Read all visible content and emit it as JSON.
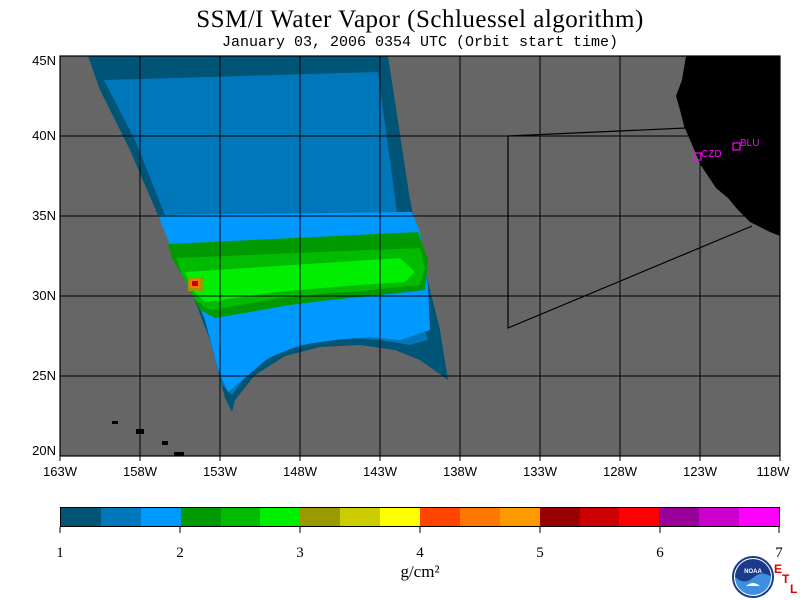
{
  "title": "SSM/I Water Vapor (Schluessel algorithm)",
  "subtitle": "January 03, 2006  0354 UTC  (Orbit start time)",
  "lat_labels": [
    "45N",
    "40N",
    "35N",
    "30N",
    "25N",
    "20N"
  ],
  "lon_labels": [
    "163W",
    "158W",
    "153W",
    "148W",
    "143W",
    "138W",
    "133W",
    "128W",
    "123W",
    "118W"
  ],
  "stations": [
    {
      "name": "CZD",
      "lat": 38.6,
      "lon": -123.2
    },
    {
      "name": "BLU",
      "lat": 39.3,
      "lon": -120.8
    }
  ],
  "colorbar": {
    "unit": "g/cm²",
    "tick_labels": [
      "1",
      "2",
      "3",
      "4",
      "5",
      "6",
      "7"
    ],
    "colors": [
      "#005577",
      "#0077bb",
      "#0099ff",
      "#009900",
      "#00bb00",
      "#00ee00",
      "#999900",
      "#cccc00",
      "#ffff00",
      "#ff4400",
      "#ff7700",
      "#ff9900",
      "#990000",
      "#cc0000",
      "#ff0000",
      "#990099",
      "#cc00cc",
      "#ff00ff"
    ]
  },
  "colors": {
    "no_data": "#666666",
    "land": "#000000",
    "station": "#ff00ff"
  },
  "logo_etl_letters": [
    "E",
    "T",
    "L"
  ],
  "map_extent": {
    "lat": [
      20,
      45
    ],
    "lon": [
      -163,
      -118
    ]
  }
}
